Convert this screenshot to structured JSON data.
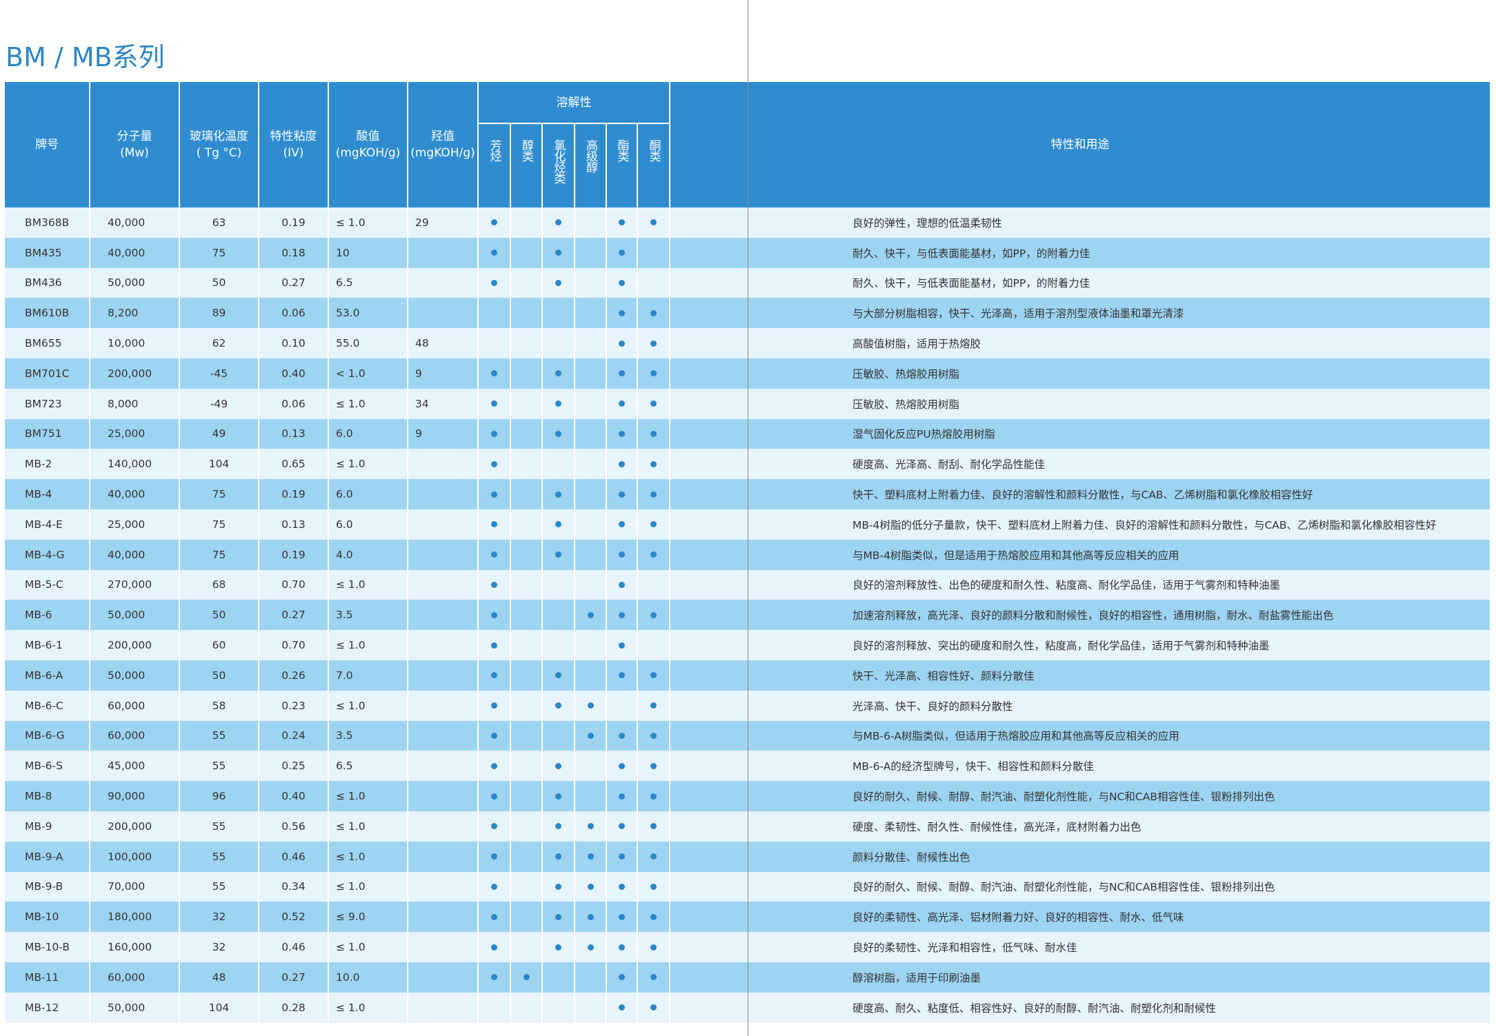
{
  "title": "BM / MB系列",
  "table": {
    "header": {
      "columns": [
        [
          "牌号"
        ],
        [
          "分子量",
          "(Mw)"
        ],
        [
          "玻璃化温度",
          "( Tg °C)"
        ],
        [
          "特性粘度",
          "(IV)"
        ],
        [
          "酸值",
          "(mgKOH/g)"
        ],
        [
          "羟值",
          "(mgKOH/g)"
        ]
      ],
      "solubility": {
        "label": "溶解性",
        "columns": [
          "芳烃",
          "醇类",
          "氯化烃类",
          "高级醇",
          "酯类",
          "酮类"
        ]
      },
      "usage": "特性和用途"
    },
    "rows": [
      {
        "cells": [
          "BM368B",
          "40,000",
          "63",
          "0.19",
          "≤ 1.0",
          "29"
        ],
        "solubility": [
          true,
          false,
          true,
          false,
          true,
          true
        ],
        "usage": "良好的弹性，理想的低温柔韧性"
      },
      {
        "cells": [
          "BM435",
          "40,000",
          "75",
          "0.18",
          "10",
          null
        ],
        "solubility": [
          true,
          false,
          true,
          false,
          true,
          false
        ],
        "usage": "耐久、快干，与低表面能基材，如PP，的附着力佳"
      },
      {
        "cells": [
          "BM436",
          "50,000",
          "50",
          "0.27",
          "6.5",
          null
        ],
        "solubility": [
          true,
          false,
          true,
          false,
          true,
          false
        ],
        "usage": "耐久、快干，与低表面能基材，如PP，的附着力佳"
      },
      {
        "cells": [
          "BM610B",
          "8,200",
          "89",
          "0.06",
          "53.0",
          null
        ],
        "solubility": [
          false,
          false,
          false,
          false,
          true,
          true
        ],
        "usage": "与大部分树脂相容，快干、光泽高，适用于溶剂型液体油墨和罩光清漆"
      },
      {
        "cells": [
          "BM655",
          "10,000",
          "62",
          "0.10",
          "55.0",
          "48"
        ],
        "solubility": [
          false,
          false,
          false,
          false,
          true,
          true
        ],
        "usage": "高酸值树脂，适用于热熔胶"
      },
      {
        "cells": [
          "BM701C",
          "200,000",
          "-45",
          "0.40",
          "< 1.0",
          "9"
        ],
        "solubility": [
          true,
          false,
          true,
          false,
          true,
          true
        ],
        "usage": "压敏胶、热熔胶用树脂"
      },
      {
        "cells": [
          "BM723",
          "8,000",
          "-49",
          "0.06",
          "≤ 1.0",
          "34"
        ],
        "solubility": [
          true,
          false,
          true,
          false,
          true,
          true
        ],
        "usage": "压敏胶、热熔胶用树脂"
      },
      {
        "cells": [
          "BM751",
          "25,000",
          "49",
          "0.13",
          "6.0",
          "9"
        ],
        "solubility": [
          true,
          false,
          true,
          false,
          true,
          true
        ],
        "usage": "湿气固化反应PU热熔胶用树脂"
      },
      {
        "cells": [
          "MB-2",
          "140,000",
          "104",
          "0.65",
          "≤ 1.0",
          null
        ],
        "solubility": [
          true,
          false,
          false,
          false,
          true,
          true
        ],
        "usage": "硬度高、光泽高、耐刮、耐化学品性能佳"
      },
      {
        "cells": [
          "MB-4",
          "40,000",
          "75",
          "0.19",
          "6.0",
          null
        ],
        "solubility": [
          true,
          false,
          true,
          false,
          true,
          true
        ],
        "usage": "快干、塑料底材上附着力佳、良好的溶解性和颜料分散性，与CAB、乙烯树脂和氯化橡胶相容性好"
      },
      {
        "cells": [
          "MB-4-E",
          "25,000",
          "75",
          "0.13",
          "6.0",
          null
        ],
        "solubility": [
          true,
          false,
          true,
          false,
          true,
          true
        ],
        "usage": "MB-4树脂的低分子量款，快干、塑料底材上附着力佳、良好的溶解性和颜料分散性，与CAB、乙烯树脂和氯化橡胶相容性好"
      },
      {
        "cells": [
          "MB-4-G",
          "40,000",
          "75",
          "0.19",
          "4.0",
          null
        ],
        "solubility": [
          true,
          false,
          true,
          false,
          true,
          true
        ],
        "usage": "与MB-4树脂类似，但是适用于热熔胶应用和其他高等反应相关的应用"
      },
      {
        "cells": [
          "MB-5-C",
          "270,000",
          "68",
          "0.70",
          "≤ 1.0",
          null
        ],
        "solubility": [
          true,
          false,
          false,
          false,
          true,
          false
        ],
        "usage": "良好的溶剂释放性、出色的硬度和耐久性、粘度高、耐化学品佳，适用于气雾剂和特种油墨"
      },
      {
        "cells": [
          "MB-6",
          "50,000",
          "50",
          "0.27",
          "3.5",
          null
        ],
        "solubility": [
          true,
          false,
          false,
          true,
          true,
          true
        ],
        "usage": "加速溶剂释放，高光泽、良好的颜料分散和耐候性，良好的相容性，通用树脂，耐水、耐盐雾性能出色"
      },
      {
        "cells": [
          "MB-6-1",
          "200,000",
          "60",
          "0.70",
          "≤ 1.0",
          null
        ],
        "solubility": [
          true,
          false,
          false,
          false,
          true,
          false
        ],
        "usage": "良好的溶剂释放、突出的硬度和耐久性，粘度高，耐化学品佳，适用于气雾剂和特种油墨"
      },
      {
        "cells": [
          "MB-6-A",
          "50,000",
          "50",
          "0.26",
          "7.0",
          null
        ],
        "solubility": [
          true,
          false,
          true,
          false,
          true,
          true
        ],
        "usage": "快干、光泽高、相容性好、颜料分散佳"
      },
      {
        "cells": [
          "MB-6-C",
          "60,000",
          "58",
          "0.23",
          "≤ 1.0",
          null
        ],
        "solubility": [
          true,
          false,
          true,
          true,
          false,
          true
        ],
        "usage": "光泽高、快干、良好的颜料分散性"
      },
      {
        "cells": [
          "MB-6-G",
          "60,000",
          "55",
          "0.24",
          "3.5",
          null
        ],
        "solubility": [
          true,
          false,
          false,
          true,
          true,
          true
        ],
        "usage": "与MB-6-A树脂类似，但适用于热熔胶应用和其他高等反应相关的应用"
      },
      {
        "cells": [
          "MB-6-S",
          "45,000",
          "55",
          "0.25",
          "6.5",
          null
        ],
        "solubility": [
          true,
          false,
          true,
          false,
          true,
          true
        ],
        "usage": "MB-6-A的经济型牌号，快干、相容性和颜料分散佳"
      },
      {
        "cells": [
          "MB-8",
          "90,000",
          "96",
          "0.40",
          "≤ 1.0",
          null
        ],
        "solubility": [
          true,
          false,
          true,
          false,
          true,
          true
        ],
        "usage": "良好的耐久、耐候、耐醇、耐汽油、耐塑化剂性能，与NC和CAB相容性佳、银粉排列出色"
      },
      {
        "cells": [
          "MB-9",
          "200,000",
          "55",
          "0.56",
          "≤ 1.0",
          null
        ],
        "solubility": [
          true,
          false,
          true,
          true,
          true,
          true
        ],
        "usage": "硬度、柔韧性、耐久性、耐候性佳，高光泽，底材附着力出色"
      },
      {
        "cells": [
          "MB-9-A",
          "100,000",
          "55",
          "0.46",
          "≤ 1.0",
          null
        ],
        "solubility": [
          true,
          false,
          true,
          true,
          true,
          true
        ],
        "usage": "颜料分散佳、耐候性出色"
      },
      {
        "cells": [
          "MB-9-B",
          "70,000",
          "55",
          "0.34",
          "≤ 1.0",
          null
        ],
        "solubility": [
          true,
          false,
          true,
          true,
          true,
          true
        ],
        "usage": "良好的耐久、耐候、耐醇、耐汽油、耐塑化剂性能，与NC和CAB相容性佳、银粉排列出色"
      },
      {
        "cells": [
          "MB-10",
          "180,000",
          "32",
          "0.52",
          "≤ 9.0",
          null
        ],
        "solubility": [
          true,
          false,
          true,
          true,
          true,
          true
        ],
        "usage": "良好的柔韧性、高光泽、铝材附着力好、良好的相容性、耐水、低气味"
      },
      {
        "cells": [
          "MB-10-B",
          "160,000",
          "32",
          "0.46",
          "≤ 1.0",
          null
        ],
        "solubility": [
          true,
          false,
          true,
          true,
          true,
          true
        ],
        "usage": "良好的柔韧性、光泽和相容性，低气味、耐水佳"
      },
      {
        "cells": [
          "MB-11",
          "60,000",
          "48",
          "0.27",
          "10.0",
          null
        ],
        "solubility": [
          true,
          true,
          false,
          false,
          true,
          true
        ],
        "usage": "醇溶树脂，适用于印刷油墨"
      },
      {
        "cells": [
          "MB-12",
          "50,000",
          "104",
          "0.28",
          "≤ 1.0",
          null
        ],
        "solubility": [
          false,
          false,
          false,
          false,
          true,
          true
        ],
        "usage": "硬度高、耐久、粘度低、相容性好、良好的耐醇、耐汽油、耐塑化剂和耐候性"
      }
    ]
  }
}
